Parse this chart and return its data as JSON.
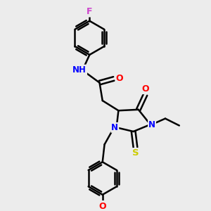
{
  "bg_color": "#ececec",
  "bond_color": "#000000",
  "bond_width": 1.8,
  "atom_colors": {
    "N": "#0000ff",
    "O": "#ff0000",
    "S": "#cccc00",
    "F": "#cc44cc",
    "H": "#000000",
    "C": "#000000"
  },
  "font_size": 8.5
}
